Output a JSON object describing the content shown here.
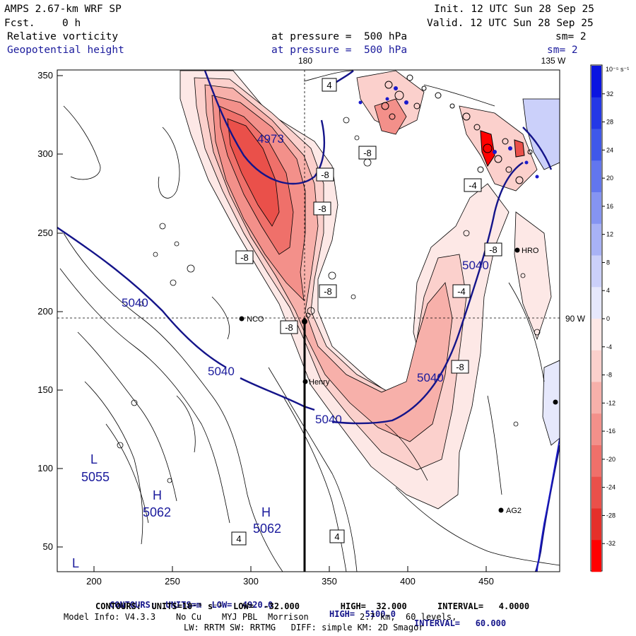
{
  "header": {
    "model": "AMPS 2.67-km WRF SP",
    "fcst_label": "Fcst.",
    "fcst_value": "0 h",
    "init": "Init. 12 UTC Sun 28 Sep 25",
    "valid": "Valid. 12 UTC Sun 28 Sep 25",
    "field1": {
      "name": "Relative vorticity",
      "pressure": "at pressure =  500 hPa",
      "sm": "sm= 2"
    },
    "field2": {
      "name": "Geopotential height",
      "pressure": "at pressure =  500 hPa",
      "sm": "sm= 2"
    }
  },
  "axes": {
    "x_ticks": [
      "200",
      "250",
      "300",
      "350",
      "400",
      "450"
    ],
    "y_ticks": [
      "350",
      "300",
      "250",
      "200",
      "150",
      "100",
      "50"
    ],
    "top_lon": "180",
    "top_right_lon": "135 W",
    "right_lat": "90 W"
  },
  "colorbar": {
    "unit": "10⁻⁵ s⁻¹",
    "labels": [
      "32",
      "28",
      "24",
      "20",
      "16",
      "12",
      "8",
      "4",
      "0",
      "-4",
      "-8",
      "-12",
      "-16",
      "-20",
      "-24",
      "-28",
      "-32"
    ],
    "positive_colors": [
      "#0a14e0",
      "#2438e6",
      "#3f58ea",
      "#6276ee",
      "#8594f2",
      "#a8b2f6",
      "#cbd0fa",
      "#e6e8fc"
    ],
    "negative_colors": [
      "#fde8e6",
      "#fbd0cc",
      "#f7b0aa",
      "#f3908a",
      "#ef706a",
      "#ea504a",
      "#e5302a",
      "#ff0000"
    ]
  },
  "labels": {
    "height": [
      "4973",
      "5040",
      "5040",
      "5040",
      "5040",
      "5040"
    ],
    "highs_lows": [
      {
        "letter": "L",
        "value": "5055"
      },
      {
        "letter": "H",
        "value": "5062"
      },
      {
        "letter": "H",
        "value": "5062"
      },
      {
        "letter": "L",
        "value": ""
      }
    ],
    "vort_boxes": [
      "-8",
      "-8",
      "-8",
      "-8",
      "-8",
      "-8",
      "-4",
      "-8",
      "-4",
      "-8",
      "4",
      "4",
      "4"
    ],
    "stations": [
      "NCO",
      "Henry",
      "HRO",
      "AG2"
    ]
  },
  "footer": {
    "line1_a": "CONTOURS:  UNITS=m  LOW=  4920.0",
    "line1_b": "HIGH=  5100.0",
    "line1_c": "INTERVAL=   60.000",
    "line2": "CONTOURS:  UNITS=10⁻⁵ s⁻¹  LOW=  -32.000        HIGH=  32.000      INTERVAL=   4.0000",
    "line3": "Model Info: V4.3.3    No Cu    MYJ PBL  Morrison          2.7 km,  60 levels,",
    "line4": "LW: RRTM SW: RRTMG   DIFF: simple KM: 2D Smagor"
  }
}
